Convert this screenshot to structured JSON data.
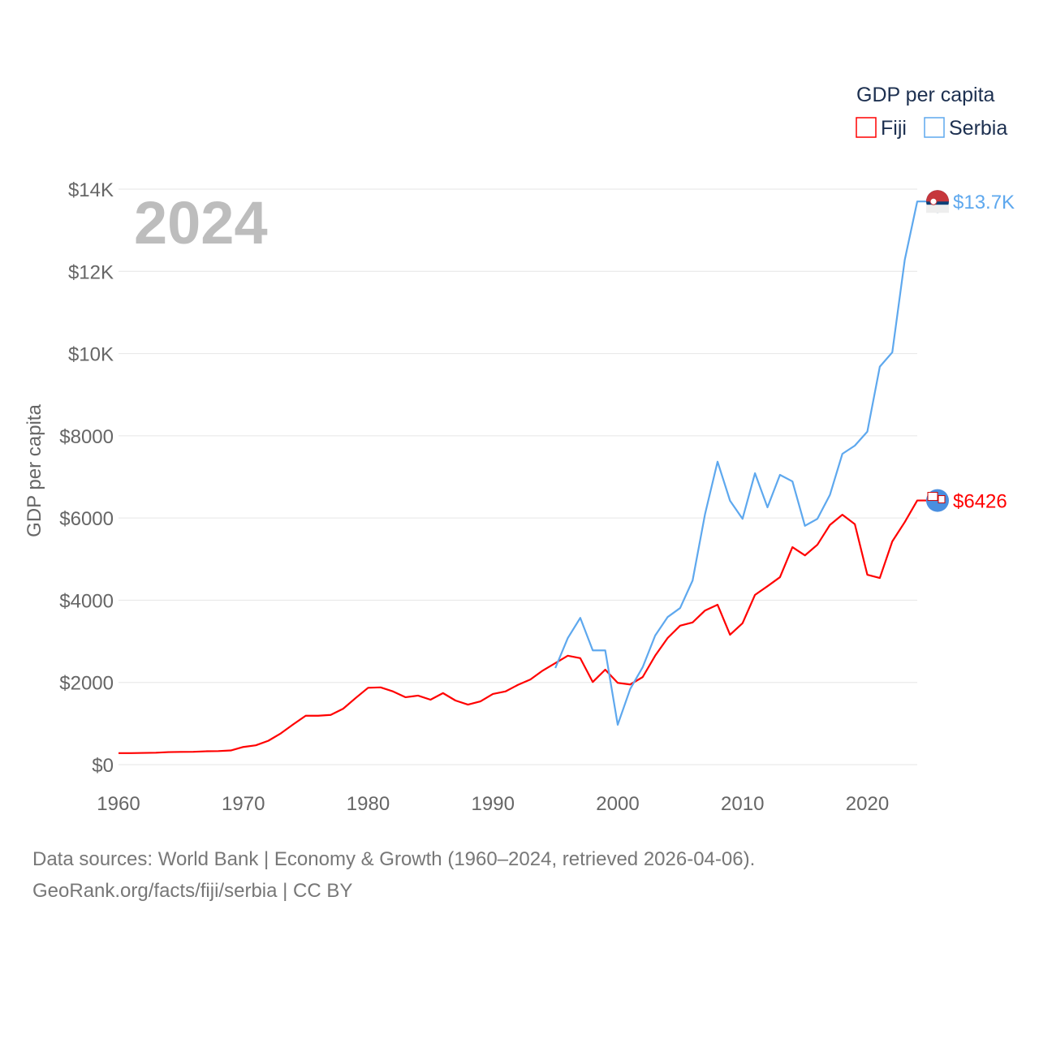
{
  "chart_data": {
    "type": "line",
    "year_label": "2024",
    "ylabel": "GDP per capita",
    "legend_title": "GDP per capita",
    "legend_position": "top-right",
    "xlim": [
      1960,
      2024
    ],
    "ylim": [
      0,
      14000
    ],
    "x_ticks": [
      1960,
      1970,
      1980,
      1990,
      2000,
      2010,
      2020
    ],
    "x_tick_labels": [
      "1960",
      "1970",
      "1980",
      "1990",
      "2000",
      "2010",
      "2020"
    ],
    "y_ticks": [
      0,
      2000,
      4000,
      6000,
      8000,
      10000,
      12000,
      14000
    ],
    "y_tick_labels": [
      "$0",
      "$2000",
      "$4000",
      "$6000",
      "$8000",
      "$10K",
      "$12K",
      "$14K"
    ],
    "grid": true,
    "series": [
      {
        "name": "Fiji",
        "color": "#ff0000",
        "end_label": "$6426",
        "start_year": 1960,
        "values": [
          280,
          280,
          285,
          290,
          305,
          310,
          312,
          325,
          330,
          345,
          430,
          470,
          580,
          760,
          980,
          1190,
          1190,
          1210,
          1360,
          1620,
          1870,
          1880,
          1780,
          1640,
          1680,
          1580,
          1740,
          1560,
          1460,
          1540,
          1720,
          1780,
          1940,
          2070,
          2290,
          2470,
          2650,
          2590,
          2010,
          2310,
          1990,
          1950,
          2130,
          2650,
          3080,
          3380,
          3460,
          3750,
          3890,
          3160,
          3440,
          4130,
          4340,
          4560,
          5290,
          5090,
          5350,
          5830,
          6080,
          5850,
          4620,
          4540,
          5430,
          5900,
          6426
        ]
      },
      {
        "name": "Serbia",
        "color": "#5ea8ee",
        "end_label": "$13.7K",
        "start_year": 1995,
        "values": [
          2350,
          3080,
          3570,
          2780,
          2780,
          970,
          1840,
          2370,
          3140,
          3590,
          3810,
          4480,
          6100,
          7370,
          6420,
          5980,
          7090,
          6260,
          7050,
          6890,
          5810,
          5980,
          6560,
          7560,
          7760,
          8100,
          9680,
          10030,
          12280,
          13700
        ]
      }
    ]
  },
  "footer": {
    "line1": "Data sources: World Bank | Economy & Growth (1960–2024, retrieved 2026-04-06).",
    "line2": "GeoRank.org/facts/fiji/serbia | CC BY"
  }
}
